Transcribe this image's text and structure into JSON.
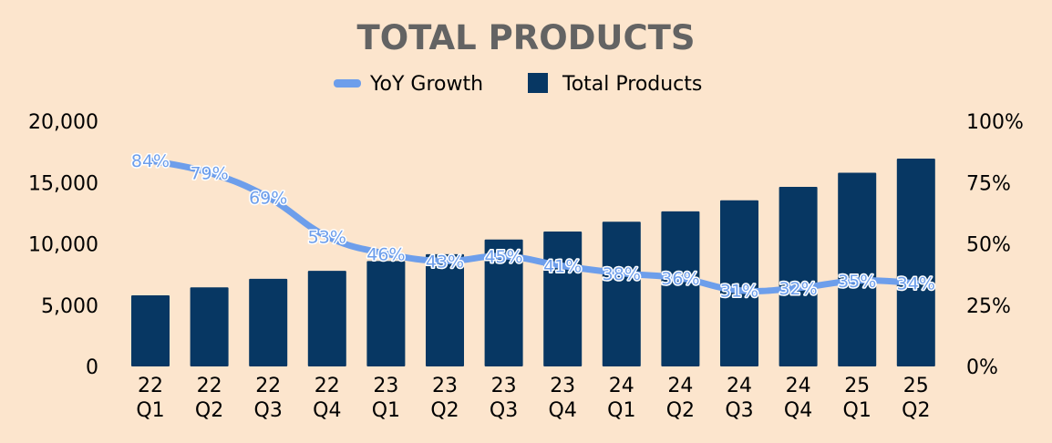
{
  "chart_data": {
    "type": "bar",
    "title": "TOTAL PRODUCTS",
    "legend": {
      "position": "top-center",
      "items": [
        {
          "label": "YoY Growth",
          "symbol": "line"
        },
        {
          "label": "Total Products",
          "symbol": "square"
        }
      ]
    },
    "categories": [
      [
        "22",
        "Q1"
      ],
      [
        "22",
        "Q2"
      ],
      [
        "22",
        "Q3"
      ],
      [
        "22",
        "Q4"
      ],
      [
        "23",
        "Q1"
      ],
      [
        "23",
        "Q2"
      ],
      [
        "23",
        "Q3"
      ],
      [
        "23",
        "Q4"
      ],
      [
        "24",
        "Q1"
      ],
      [
        "24",
        "Q2"
      ],
      [
        "24",
        "Q3"
      ],
      [
        "24",
        "Q4"
      ],
      [
        "25",
        "Q1"
      ],
      [
        "25",
        "Q2"
      ]
    ],
    "series": [
      {
        "name": "Total Products",
        "type": "bar",
        "axis": "left",
        "color": "#073763",
        "values": [
          5800,
          6450,
          7150,
          7800,
          8600,
          9150,
          10350,
          11000,
          11800,
          12650,
          13550,
          14650,
          15800,
          16950
        ]
      },
      {
        "name": "YoY Growth",
        "type": "line",
        "axis": "right",
        "color": "#6d9eeb",
        "values": [
          84,
          79,
          69,
          53,
          46,
          43,
          45,
          41,
          38,
          36,
          31,
          32,
          35,
          34
        ],
        "labels": [
          "84%",
          "79%",
          "69%",
          "53%",
          "46%",
          "43%",
          "45%",
          "41%",
          "38%",
          "36%",
          "31%",
          "32%",
          "35%",
          "34%"
        ]
      }
    ],
    "y_left": {
      "lim": [
        0,
        20000
      ],
      "ticks": [
        0,
        5000,
        10000,
        15000,
        20000
      ],
      "tick_labels": [
        "0",
        "5,000",
        "10,000",
        "15,000",
        "20,000"
      ]
    },
    "y_right": {
      "lim": [
        0,
        100
      ],
      "ticks": [
        0,
        25,
        50,
        75,
        100
      ],
      "tick_labels": [
        "0%",
        "25%",
        "50%",
        "75%",
        "100%"
      ]
    },
    "grid": false,
    "background": "#fce5cd"
  }
}
